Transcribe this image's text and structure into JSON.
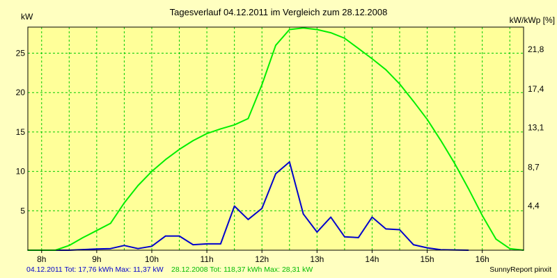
{
  "chart_data": {
    "type": "line",
    "title": "Tagesverlauf 04.12.2011 im Vergleich zum 28.12.2008",
    "ylabel_left": "kW",
    "ylabel_right": "kW/kWp [%]",
    "xlim": [
      7.75,
      16.75
    ],
    "ylim": [
      0,
      28.31
    ],
    "x_ticks": [
      {
        "x": 8,
        "label": "8h"
      },
      {
        "x": 9,
        "label": "9h"
      },
      {
        "x": 10,
        "label": "10h"
      },
      {
        "x": 11,
        "label": "11h"
      },
      {
        "x": 12,
        "label": "12h"
      },
      {
        "x": 13,
        "label": "13h"
      },
      {
        "x": 14,
        "label": "14h"
      },
      {
        "x": 15,
        "label": "15h"
      },
      {
        "x": 16,
        "label": "16h"
      }
    ],
    "y_ticks_left": [
      {
        "y": 5,
        "label": "5"
      },
      {
        "y": 10,
        "label": "10"
      },
      {
        "y": 15,
        "label": "15"
      },
      {
        "y": 20,
        "label": "20"
      },
      {
        "y": 25,
        "label": "25"
      }
    ],
    "y_ticks_right": [
      {
        "y": 5.01,
        "label": "4,4"
      },
      {
        "y": 9.91,
        "label": "8,7"
      },
      {
        "y": 14.95,
        "label": "13,1"
      },
      {
        "y": 19.85,
        "label": "17,4"
      },
      {
        "y": 24.89,
        "label": "21,8"
      }
    ],
    "grid": true,
    "colors": {
      "background": "#ffffc0",
      "plot_background": "#ffff99",
      "grid": "#00cc00",
      "series1": "#0000cc",
      "series2": "#00ee00"
    },
    "series": [
      {
        "name": "04.12.2011",
        "color": "#0000cc",
        "points": [
          [
            7.75,
            0
          ],
          [
            8.5,
            0
          ],
          [
            9.0,
            0.15
          ],
          [
            9.25,
            0.2
          ],
          [
            9.5,
            0.6
          ],
          [
            9.75,
            0.2
          ],
          [
            10.0,
            0.5
          ],
          [
            10.25,
            1.8
          ],
          [
            10.5,
            1.8
          ],
          [
            10.75,
            0.7
          ],
          [
            11.0,
            0.8
          ],
          [
            11.25,
            0.8
          ],
          [
            11.5,
            5.6
          ],
          [
            11.75,
            3.9
          ],
          [
            12.0,
            5.3
          ],
          [
            12.25,
            9.7
          ],
          [
            12.5,
            11.2
          ],
          [
            12.75,
            4.6
          ],
          [
            13.0,
            2.3
          ],
          [
            13.25,
            4.2
          ],
          [
            13.5,
            1.7
          ],
          [
            13.75,
            1.6
          ],
          [
            14.0,
            4.2
          ],
          [
            14.25,
            2.7
          ],
          [
            14.5,
            2.6
          ],
          [
            14.75,
            0.7
          ],
          [
            15.0,
            0.3
          ],
          [
            15.25,
            0.05
          ],
          [
            15.75,
            0
          ]
        ]
      },
      {
        "name": "28.12.2008",
        "color": "#00ee00",
        "points": [
          [
            7.75,
            0
          ],
          [
            8.25,
            0
          ],
          [
            8.5,
            0.6
          ],
          [
            8.75,
            1.6
          ],
          [
            9.0,
            2.5
          ],
          [
            9.25,
            3.4
          ],
          [
            9.5,
            6.0
          ],
          [
            9.75,
            8.2
          ],
          [
            10.0,
            10.0
          ],
          [
            10.25,
            11.5
          ],
          [
            10.5,
            12.8
          ],
          [
            10.75,
            13.9
          ],
          [
            11.0,
            14.8
          ],
          [
            11.25,
            15.4
          ],
          [
            11.5,
            15.9
          ],
          [
            11.75,
            16.7
          ],
          [
            12.0,
            21.0
          ],
          [
            12.25,
            26.0
          ],
          [
            12.5,
            28.0
          ],
          [
            12.75,
            28.2
          ],
          [
            13.0,
            28.0
          ],
          [
            13.25,
            27.6
          ],
          [
            13.5,
            26.9
          ],
          [
            13.75,
            25.6
          ],
          [
            14.0,
            24.3
          ],
          [
            14.25,
            22.9
          ],
          [
            14.5,
            21.1
          ],
          [
            14.75,
            18.9
          ],
          [
            15.0,
            16.6
          ],
          [
            15.25,
            13.9
          ],
          [
            15.5,
            11.0
          ],
          [
            15.75,
            7.8
          ],
          [
            16.0,
            4.4
          ],
          [
            16.25,
            1.4
          ],
          [
            16.5,
            0.2
          ],
          [
            16.75,
            0
          ]
        ]
      }
    ]
  },
  "footer": {
    "series1_summary": "04.12.2011 Tot: 17,76 kWh Max: 11,37 kW",
    "series2_summary": "28.12.2008 Tot: 118,37 kWh Max: 28,31 kW",
    "credit": "SunnyReport pinxit"
  }
}
